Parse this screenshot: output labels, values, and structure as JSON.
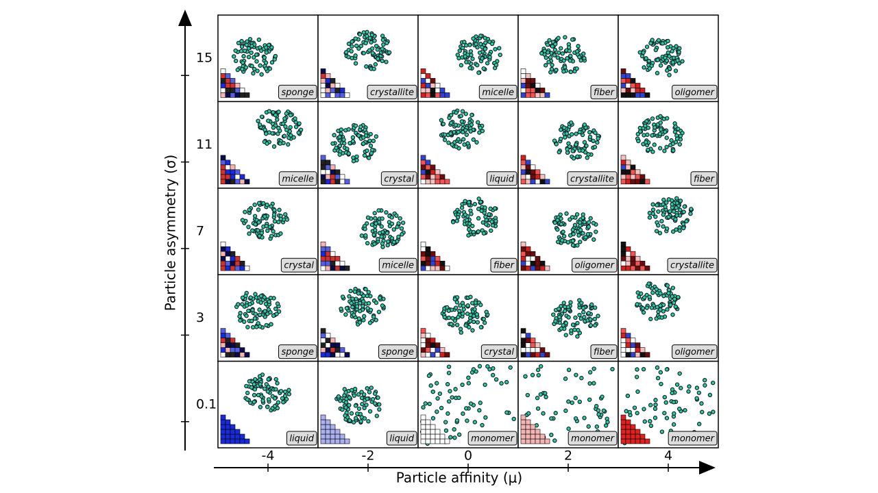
{
  "x_axis": {
    "label": "Particle affinity (μ)",
    "ticks": [
      -4,
      -2,
      0,
      2,
      4
    ]
  },
  "y_axis": {
    "label": "Particle asymmetry (σ)",
    "ticks": [
      15,
      11,
      7,
      3,
      0.1
    ]
  },
  "panels": [
    [
      "sponge",
      "crystallite",
      "micelle",
      "fiber",
      "oligomer"
    ],
    [
      "micelle",
      "crystal",
      "liquid",
      "crystallite",
      "fiber"
    ],
    [
      "crystal",
      "micelle",
      "fiber",
      "oligomer",
      "crystallite"
    ],
    [
      "sponge",
      "sponge",
      "crystal",
      "fiber",
      "oligomer"
    ],
    [
      "liquid",
      "liquid",
      "monomer",
      "monomer",
      "monomer"
    ]
  ]
}
